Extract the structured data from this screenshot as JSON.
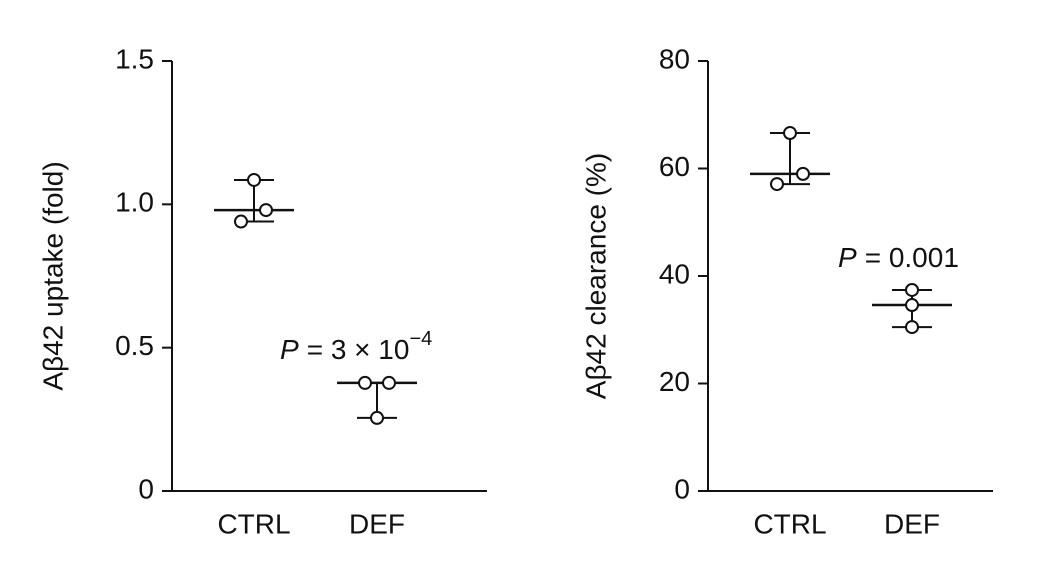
{
  "chart_data": [
    {
      "type": "dotplot",
      "y_label": "Aβ42 uptake (fold)",
      "categories": [
        "CTRL",
        "DEF"
      ],
      "groups": [
        {
          "points": [
            1.085,
            0.98,
            0.94
          ],
          "mean": 0.98,
          "error_high": 1.085,
          "error_low": 0.94
        },
        {
          "points": [
            0.377,
            0.377,
            0.255
          ],
          "mean": 0.377,
          "error_high": 0.377,
          "error_low": 0.255
        }
      ],
      "annotation": {
        "italic": "P",
        "text": "= 3 × 10",
        "superscript": "−4"
      },
      "color": "#111111",
      "ylim": [
        0,
        1.5
      ],
      "yticks": [
        0,
        0.5,
        {
          "value": 1,
          "label": "1.0"
        },
        1.5
      ]
    },
    {
      "type": "dotplot",
      "y_label": "Aβ42 clearance (%)",
      "categories": [
        "CTRL",
        "DEF"
      ],
      "groups": [
        {
          "points": [
            66.6,
            59,
            57.1
          ],
          "mean": 59,
          "error_high": 66.6,
          "error_low": 57.1
        },
        {
          "points": [
            37.4,
            34.6,
            30.5
          ],
          "mean": 34.6,
          "error_high": 37.4,
          "error_low": 30.5
        }
      ],
      "annotation": {
        "italic": "P",
        "text": "= 0.001"
      },
      "color": "#111111",
      "ylim": [
        0,
        80
      ],
      "yticks": [
        0,
        20,
        40,
        60,
        80
      ]
    }
  ]
}
